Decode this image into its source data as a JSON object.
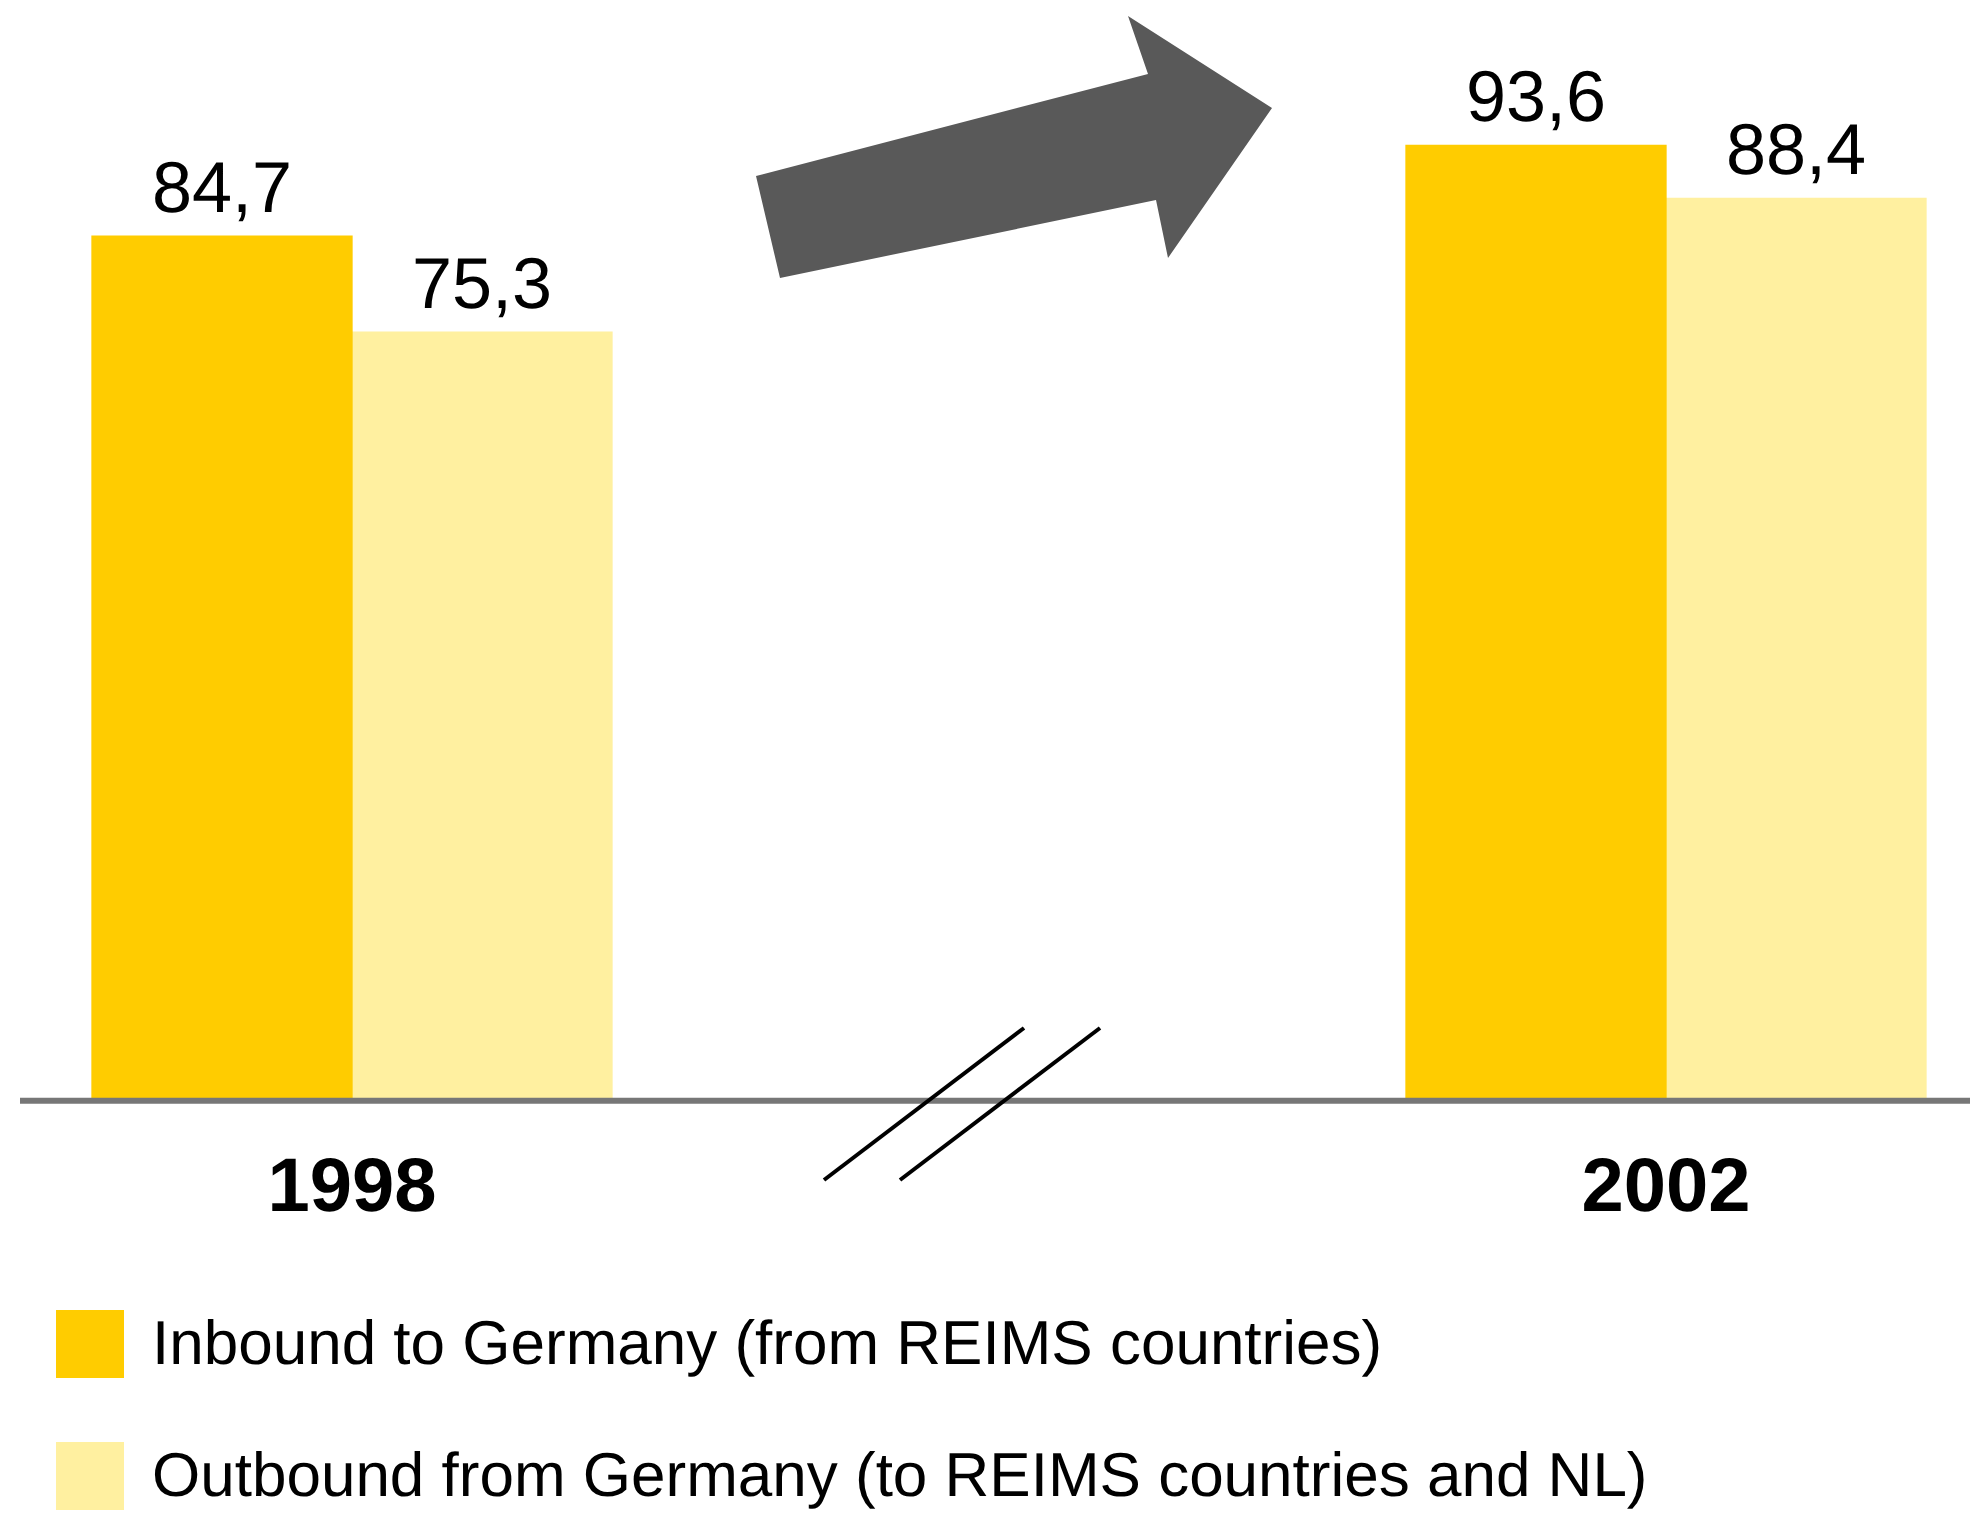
{
  "chart_data": {
    "type": "bar",
    "categories": [
      "1998",
      "2002"
    ],
    "series": [
      {
        "name": "Inbound to Germany (from REIMS countries)",
        "color": "#ffcc00",
        "values": [
          84.7,
          93.6
        ],
        "value_labels": [
          "84,7",
          "93,6"
        ]
      },
      {
        "name": "Outbound from Germany (to REIMS countries and NL)",
        "color": "#fff0a0",
        "values": [
          75.3,
          88.4
        ],
        "value_labels": [
          "75,3",
          "88,4"
        ]
      }
    ],
    "legend": "bottom",
    "grid": false,
    "tick_labels": "x"
  }
}
